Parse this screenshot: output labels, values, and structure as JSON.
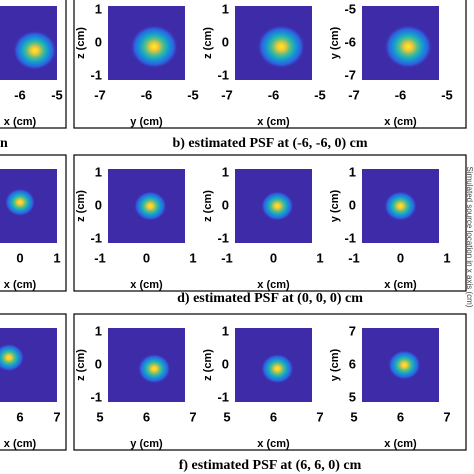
{
  "rows": [
    {
      "caption": "b) estimated PSF at (-6, -6, 0) cm",
      "left": {
        "xticks": [
          "-6",
          "-5"
        ],
        "xlabel": "x (cm)",
        "caption": "n"
      },
      "panels": [
        {
          "ylabel": "z (cm)",
          "yticks": [
            "1",
            "0",
            "-1"
          ],
          "xlabel": "y (cm)",
          "xticks": [
            "-7",
            "-6",
            "-5"
          ]
        },
        {
          "ylabel": "z (cm)",
          "yticks": [
            "1",
            "0",
            "-1"
          ],
          "xlabel": "x (cm)",
          "xticks": [
            "-7",
            "-6",
            "-5"
          ]
        },
        {
          "ylabel": "y (cm)",
          "yticks": [
            "-5",
            "-6",
            "-7"
          ],
          "xlabel": "x (cm)",
          "xticks": [
            "-7",
            "-6",
            "-5"
          ]
        }
      ]
    },
    {
      "caption": "d) estimated PSF at (0, 0, 0) cm",
      "left": {
        "xticks": [
          "0",
          "1"
        ],
        "xlabel": "x (cm)"
      },
      "panels": [
        {
          "ylabel": "z (cm)",
          "yticks": [
            "1",
            "0",
            "-1"
          ],
          "xlabel": "x (cm)",
          "xticks": [
            "-1",
            "0",
            "1"
          ]
        },
        {
          "ylabel": "z (cm)",
          "yticks": [
            "1",
            "0",
            "-1"
          ],
          "xlabel": "x (cm)",
          "xticks": [
            "-1",
            "0",
            "1"
          ]
        },
        {
          "ylabel": "y (cm)",
          "yticks": [
            "1",
            "0",
            "-1"
          ],
          "xlabel": "x (cm)",
          "xticks": [
            "-1",
            "0",
            "1"
          ]
        }
      ]
    },
    {
      "caption": "f) estimated PSF at (6, 6, 0) cm",
      "left": {
        "xticks": [
          "6",
          "7"
        ],
        "xlabel": "x (cm)"
      },
      "panels": [
        {
          "ylabel": "z (cm)",
          "yticks": [
            "1",
            "0",
            "-1"
          ],
          "xlabel": "y (cm)",
          "xticks": [
            "5",
            "6",
            "7"
          ]
        },
        {
          "ylabel": "z (cm)",
          "yticks": [
            "1",
            "0",
            "-1"
          ],
          "xlabel": "x (cm)",
          "xticks": [
            "5",
            "6",
            "7"
          ]
        },
        {
          "ylabel": "y (cm)",
          "yticks": [
            "7",
            "6",
            "5"
          ],
          "xlabel": "x (cm)",
          "xticks": [
            "5",
            "6",
            "7"
          ]
        }
      ]
    }
  ],
  "side_label": "Simulated source location in x axis (cm)"
}
